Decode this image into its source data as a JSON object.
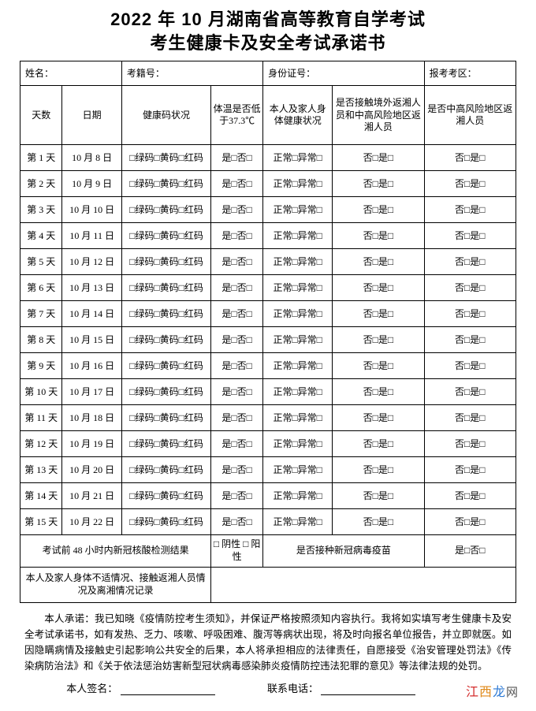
{
  "title_line1": "2022 年 10 月湖南省高等教育自学考试",
  "title_line2": "考生健康卡及安全考试承诺书",
  "info": {
    "name_label": "姓名：",
    "exam_id_label": "考籍号：",
    "id_label": "身份证号：",
    "area_label": "报考考区："
  },
  "columns": {
    "day": "天数",
    "date": "日期",
    "health_code": "健康码状况",
    "temp": "体温是否低于37.3℃",
    "family": "本人及家人身体健康状况",
    "contact": "是否接触境外返湘人员和中高风险地区返湘人员",
    "risk": "是否中高风险地区返湘人员"
  },
  "cell_templates": {
    "code_options": "□绿码□黄码□红码",
    "yes_no": "是□否□",
    "normal_abnormal": "正常□异常□",
    "no_yes": "否□是□"
  },
  "rows": [
    {
      "day": "第 1 天",
      "date": "10 月 8 日"
    },
    {
      "day": "第 2 天",
      "date": "10 月 9 日"
    },
    {
      "day": "第 3 天",
      "date": "10 月 10 日"
    },
    {
      "day": "第 4 天",
      "date": "10 月 11 日"
    },
    {
      "day": "第 5 天",
      "date": "10 月 12 日"
    },
    {
      "day": "第 6 天",
      "date": "10 月 13 日"
    },
    {
      "day": "第 7 天",
      "date": "10 月 14 日"
    },
    {
      "day": "第 8 天",
      "date": "10 月 15 日"
    },
    {
      "day": "第 9 天",
      "date": "10 月 16 日"
    },
    {
      "day": "第 10 天",
      "date": "10 月 17 日"
    },
    {
      "day": "第 11 天",
      "date": "10 月 18 日"
    },
    {
      "day": "第 12 天",
      "date": "10 月 19 日"
    },
    {
      "day": "第 13 天",
      "date": "10 月 20 日"
    },
    {
      "day": "第 14 天",
      "date": "10 月 21 日"
    },
    {
      "day": "第 15 天",
      "date": "10 月 22 日"
    }
  ],
  "nat_row": {
    "label": "考试前 48 小时内新冠核酸检测结果",
    "result": "□ 阴性 □ 阳性",
    "vaccine_label": "是否接种新冠病毒疫苗",
    "vaccine_value": "是□否□"
  },
  "remarks_label": "本人及家人身体不适情况、接触返湘人员情况及离湘情况记录",
  "pledge_text": "本人承诺：我已知晓《疫情防控考生须知》，并保证严格按照须知内容执行。我将如实填写考生健康卡及安全考试承诺书，如有发热、乏力、咳嗽、呼吸困难、腹泻等病状出现，将及时向报名单位报告，并立即就医。如因隐瞒病情及接触史引起影响公共安全的后果，本人将承担相应的法律责任，自愿接受《治安管理处罚法》《传染病防治法》和《关于依法惩治妨害新型冠状病毒感染肺炎疫情防控违法犯罪的意见》等法律法规的处罚。",
  "sign": {
    "name_label": "本人签名：",
    "phone_label": "联系电话："
  },
  "watermark": {
    "c1": "江",
    "c2": "西",
    "c3": "龙",
    "c4": "网"
  },
  "style": {
    "border_color": "#000000",
    "background": "#ffffff",
    "title_fontsize": 22,
    "cell_fontsize": 12,
    "col_widths_pct": [
      8.5,
      12,
      18,
      10.5,
      14,
      18.5,
      18.5
    ]
  }
}
